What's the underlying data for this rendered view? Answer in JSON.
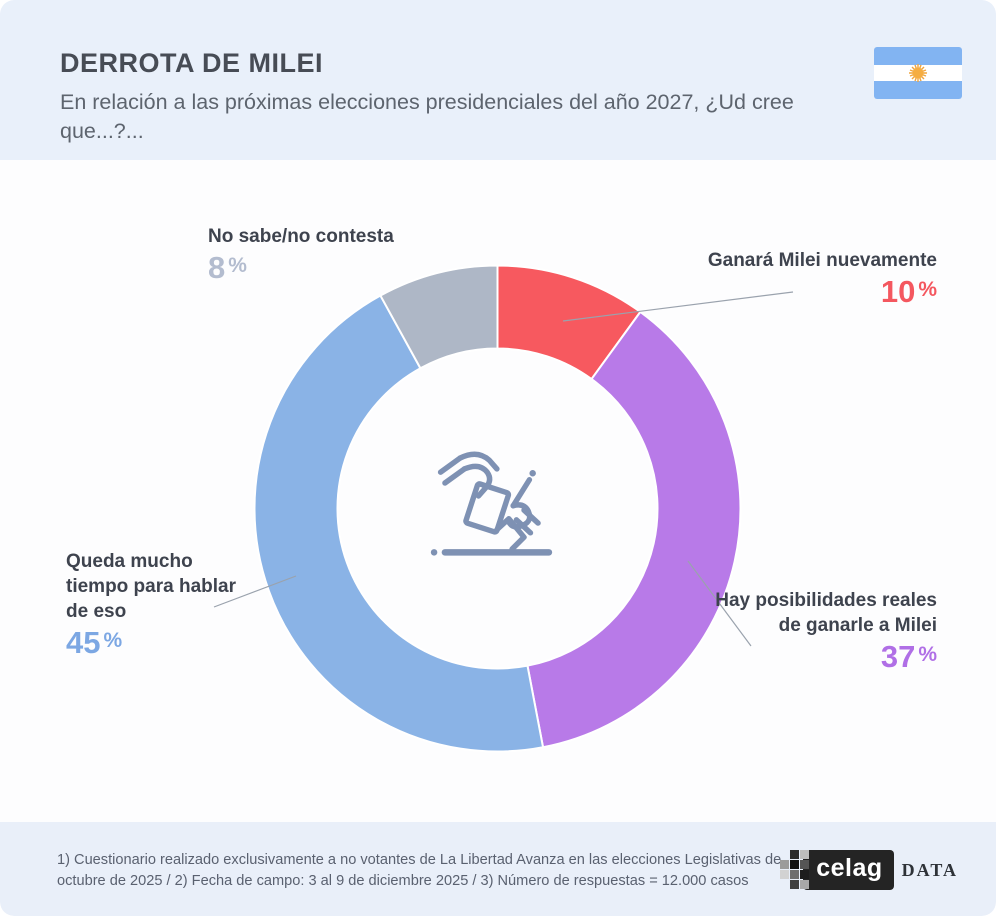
{
  "header": {
    "title": "DERROTA DE MILEI",
    "subtitle": "En relación a las próximas elecciones presidenciales del año 2027, ¿Ud cree que...?...",
    "flag_icon": "argentina-flag",
    "background": "#e9f0fa"
  },
  "chart_data": {
    "type": "pie",
    "variant": "donut",
    "title": "DERROTA DE MILEI",
    "question": "En relación a las próximas elecciones presidenciales del año 2027, ¿Ud cree que...?...",
    "start_angle_deg": 0,
    "direction": "clockwise",
    "center_icon": "ballot-voting-hands",
    "legend_position": "callouts-around-donut",
    "segments": [
      {
        "label": "Ganará Milei nuevamente",
        "value": 10,
        "unit": "%",
        "color": "#f7595f",
        "value_color": "#f4575f"
      },
      {
        "label": "Hay posibilidades reales de ganarle a Milei",
        "value": 37,
        "unit": "%",
        "color": "#b87ae8",
        "value_color": "#b06fe6"
      },
      {
        "label": "Queda mucho tiempo para hablar de eso",
        "value": 45,
        "unit": "%",
        "color": "#8ab3e6",
        "value_color": "#7ca7e3"
      },
      {
        "label": "No sabe/no contesta",
        "value": 8,
        "unit": "%",
        "color": "#aeb7c6",
        "value_color": "#b3bccf"
      }
    ]
  },
  "footer": {
    "note": "1) Cuestionario realizado exclusivamente a no votantes de La Libertad Avanza en las elecciones Legislativas de octubre de 2025  /  2) Fecha de campo: 3 al 9 de diciembre 2025 /  3) Número de respuestas = 12.000 casos"
  },
  "logo": {
    "brand": "celag",
    "suffix": "DATA"
  },
  "colors": {
    "header_bg": "#e9f0fa",
    "footer_bg": "#e9eff9",
    "text_dark": "#3e434e",
    "text_gray": "#5d646e",
    "icon_stroke": "#7e91b3",
    "connector_line": "#9aa2ad"
  }
}
